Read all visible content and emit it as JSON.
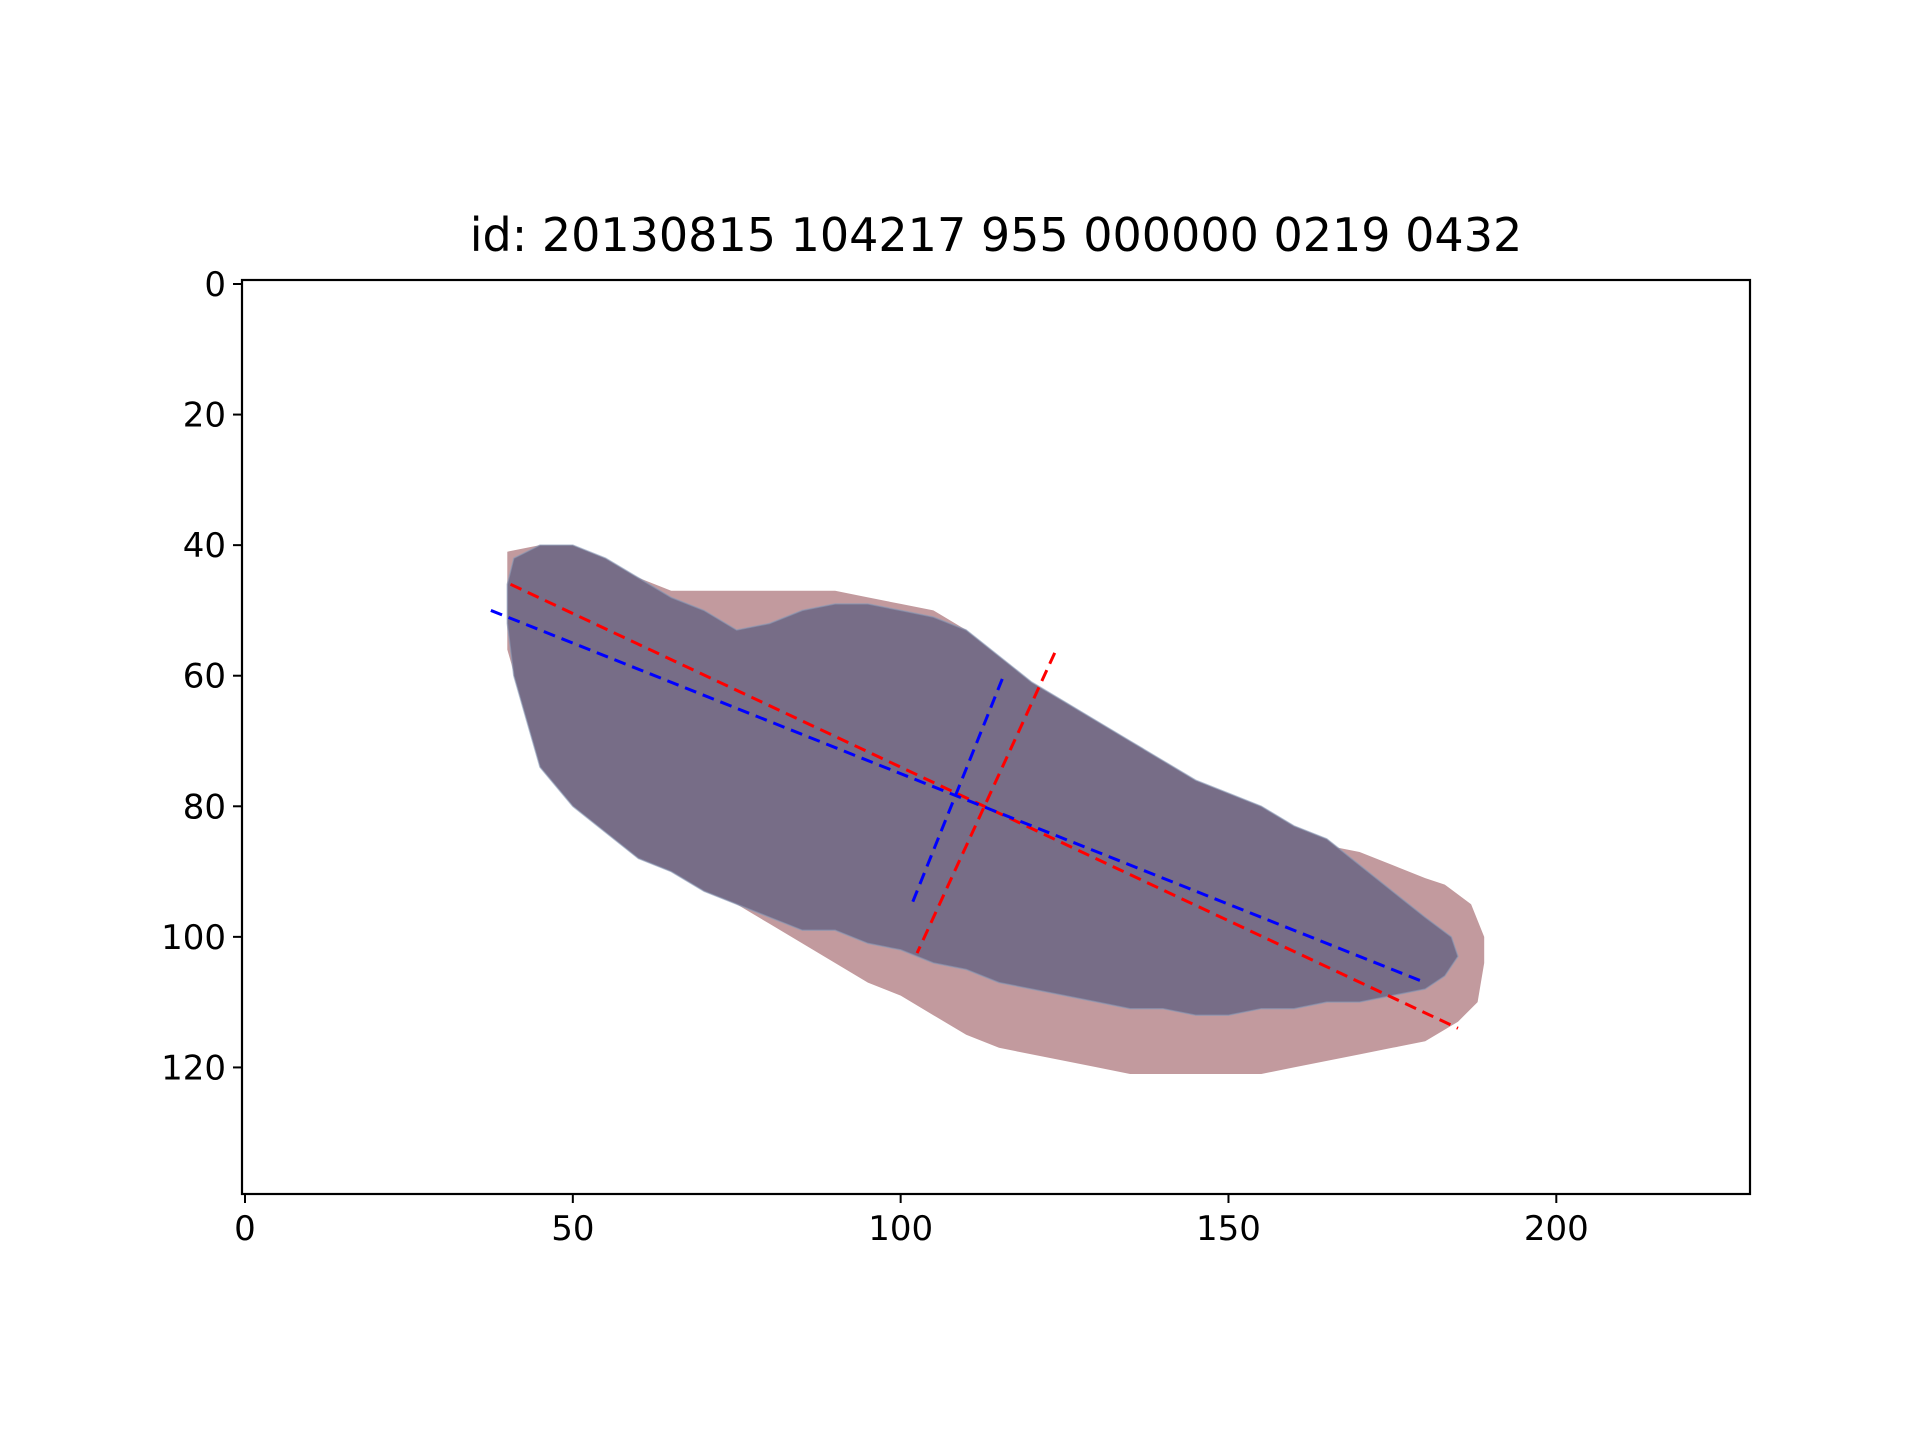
{
  "chart_data": {
    "type": "image_overlay",
    "title": "id: 20130815 104217 955 000000 0219 0432",
    "xlim": [
      0,
      230
    ],
    "ylim": [
      140,
      0
    ],
    "y_inverted": true,
    "x_ticks": [
      0,
      50,
      100,
      150,
      200
    ],
    "y_ticks": [
      0,
      20,
      40,
      60,
      80,
      100,
      120
    ],
    "grid": false,
    "colors": {
      "outer_mask": "#c29a9e",
      "inner_mask": "#776d87",
      "inner_edge": "#8c9bb7",
      "red_axes": "#ff0000",
      "blue_axes": "#0000ff"
    },
    "outer_mask": {
      "top": [
        [
          40,
          41
        ],
        [
          45,
          40
        ],
        [
          50,
          40
        ],
        [
          55,
          43
        ],
        [
          60,
          45
        ],
        [
          65,
          47
        ],
        [
          70,
          47
        ],
        [
          80,
          47
        ],
        [
          90,
          47
        ],
        [
          95,
          48
        ],
        [
          100,
          49
        ],
        [
          105,
          50
        ],
        [
          110,
          53
        ],
        [
          115,
          58
        ],
        [
          120,
          62
        ],
        [
          125,
          65
        ],
        [
          130,
          68
        ],
        [
          135,
          72
        ],
        [
          140,
          75
        ],
        [
          145,
          78
        ],
        [
          150,
          81
        ],
        [
          155,
          83
        ],
        [
          160,
          85
        ],
        [
          165,
          86
        ],
        [
          170,
          87
        ],
        [
          175,
          89
        ],
        [
          180,
          91
        ],
        [
          183,
          92
        ],
        [
          187,
          95
        ],
        [
          189,
          100
        ]
      ],
      "bottom": [
        [
          189,
          104
        ],
        [
          188,
          110
        ],
        [
          185,
          113
        ],
        [
          180,
          116
        ],
        [
          175,
          117
        ],
        [
          170,
          118
        ],
        [
          165,
          119
        ],
        [
          160,
          120
        ],
        [
          155,
          121
        ],
        [
          150,
          121
        ],
        [
          145,
          121
        ],
        [
          140,
          121
        ],
        [
          135,
          121
        ],
        [
          130,
          120
        ],
        [
          125,
          119
        ],
        [
          120,
          118
        ],
        [
          115,
          117
        ],
        [
          110,
          115
        ],
        [
          105,
          112
        ],
        [
          100,
          109
        ],
        [
          95,
          107
        ],
        [
          90,
          104
        ],
        [
          85,
          101
        ],
        [
          80,
          98
        ],
        [
          75,
          95
        ],
        [
          70,
          92
        ],
        [
          65,
          88
        ],
        [
          60,
          86
        ],
        [
          55,
          82
        ],
        [
          50,
          77
        ],
        [
          45,
          70
        ],
        [
          42,
          63
        ],
        [
          40,
          56
        ],
        [
          40,
          48
        ]
      ]
    },
    "inner_mask": {
      "top": [
        [
          41,
          42
        ],
        [
          45,
          40
        ],
        [
          50,
          40
        ],
        [
          55,
          42
        ],
        [
          60,
          45
        ],
        [
          65,
          48
        ],
        [
          70,
          50
        ],
        [
          75,
          53
        ],
        [
          80,
          52
        ],
        [
          85,
          50
        ],
        [
          90,
          49
        ],
        [
          95,
          49
        ],
        [
          100,
          50
        ],
        [
          105,
          51
        ],
        [
          110,
          53
        ],
        [
          115,
          57
        ],
        [
          120,
          61
        ],
        [
          125,
          64
        ],
        [
          130,
          67
        ],
        [
          135,
          70
        ],
        [
          140,
          73
        ],
        [
          145,
          76
        ],
        [
          150,
          78
        ],
        [
          155,
          80
        ],
        [
          160,
          83
        ],
        [
          165,
          85
        ],
        [
          170,
          89
        ],
        [
          175,
          93
        ],
        [
          180,
          97
        ],
        [
          184,
          100
        ],
        [
          185,
          103
        ]
      ],
      "bottom": [
        [
          185,
          103
        ],
        [
          183,
          106
        ],
        [
          180,
          108
        ],
        [
          175,
          109
        ],
        [
          170,
          110
        ],
        [
          165,
          110
        ],
        [
          160,
          111
        ],
        [
          155,
          111
        ],
        [
          150,
          112
        ],
        [
          145,
          112
        ],
        [
          140,
          111
        ],
        [
          135,
          111
        ],
        [
          130,
          110
        ],
        [
          125,
          109
        ],
        [
          120,
          108
        ],
        [
          115,
          107
        ],
        [
          110,
          105
        ],
        [
          105,
          104
        ],
        [
          100,
          102
        ],
        [
          95,
          101
        ],
        [
          90,
          99
        ],
        [
          85,
          99
        ],
        [
          80,
          97
        ],
        [
          75,
          95
        ],
        [
          70,
          93
        ],
        [
          65,
          90
        ],
        [
          60,
          88
        ],
        [
          55,
          84
        ],
        [
          50,
          80
        ],
        [
          45,
          74
        ],
        [
          43,
          67
        ],
        [
          41,
          60
        ],
        [
          40,
          52
        ],
        [
          40,
          46
        ]
      ]
    },
    "red_axes": [
      {
        "x": [
          40.5,
          185
        ],
        "y": [
          46,
          114
        ]
      },
      {
        "x": [
          123.5,
          102.5
        ],
        "y": [
          56.5,
          102.5
        ]
      }
    ],
    "blue_axes": [
      {
        "x": [
          37.5,
          180
        ],
        "y": [
          50,
          107
        ]
      },
      {
        "x": [
          115.5,
          101.5
        ],
        "y": [
          60.5,
          95.5
        ]
      }
    ]
  }
}
